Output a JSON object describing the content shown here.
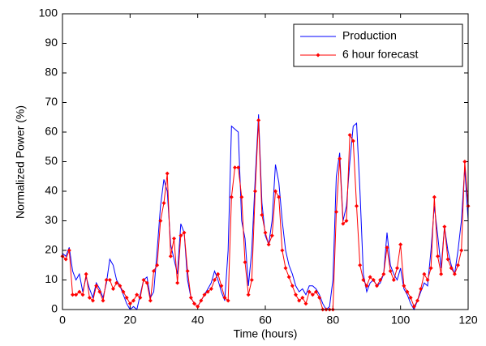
{
  "chart_data": {
    "type": "line",
    "x_label": "Time (hours)",
    "y_label": "Normalized Power (%)",
    "x": [
      0,
      1,
      2,
      3,
      4,
      5,
      6,
      7,
      8,
      9,
      10,
      11,
      12,
      13,
      14,
      15,
      16,
      17,
      18,
      19,
      20,
      21,
      22,
      23,
      24,
      25,
      26,
      27,
      28,
      29,
      30,
      31,
      32,
      33,
      34,
      35,
      36,
      37,
      38,
      39,
      40,
      41,
      42,
      43,
      44,
      45,
      46,
      47,
      48,
      49,
      50,
      51,
      52,
      53,
      54,
      55,
      56,
      57,
      58,
      59,
      60,
      61,
      62,
      63,
      64,
      65,
      66,
      67,
      68,
      69,
      70,
      71,
      72,
      73,
      74,
      75,
      76,
      77,
      78,
      79,
      80,
      81,
      82,
      83,
      84,
      85,
      86,
      87,
      88,
      89,
      90,
      91,
      92,
      93,
      94,
      95,
      96,
      97,
      98,
      99,
      100,
      101,
      102,
      103,
      104,
      105,
      106,
      107,
      108,
      109,
      110,
      111,
      112,
      113,
      114,
      115,
      116,
      117,
      118,
      119,
      120
    ],
    "series": [
      {
        "name": "Production",
        "color": "#0000ff",
        "marker": false,
        "values": [
          19,
          18,
          21,
          13,
          10,
          12,
          6,
          11,
          7,
          4,
          9,
          7,
          4,
          9,
          17,
          15,
          10,
          8,
          5,
          2,
          0,
          1,
          0,
          5,
          10,
          11,
          4,
          6,
          20,
          35,
          44,
          40,
          22,
          17,
          12,
          29,
          26,
          10,
          4,
          2,
          1,
          3,
          5,
          7,
          9,
          13,
          10,
          6,
          3,
          20,
          62,
          61,
          60,
          30,
          24,
          8,
          20,
          44,
          66,
          36,
          25,
          22,
          30,
          49,
          43,
          30,
          20,
          15,
          12,
          8,
          6,
          7,
          5,
          8,
          8,
          7,
          5,
          2,
          0,
          1,
          10,
          45,
          53,
          30,
          35,
          50,
          62,
          63,
          40,
          12,
          6,
          9,
          10,
          8,
          9,
          12,
          26,
          15,
          12,
          10,
          14,
          7,
          5,
          2,
          0,
          3,
          6,
          9,
          8,
          20,
          35,
          25,
          14,
          28,
          20,
          15,
          12,
          20,
          30,
          48,
          30
        ]
      },
      {
        "name": "6 hour forecast",
        "color": "#ff0000",
        "marker": true,
        "values": [
          18,
          17,
          20,
          5,
          5,
          6,
          5,
          12,
          4,
          3,
          8,
          6,
          3,
          10,
          10,
          7,
          9,
          8,
          6,
          4,
          2,
          3,
          5,
          4,
          10,
          9,
          3,
          13,
          15,
          30,
          36,
          46,
          18,
          24,
          9,
          25,
          26,
          13,
          4,
          2,
          1,
          3,
          5,
          6,
          7,
          10,
          12,
          8,
          4,
          3,
          38,
          48,
          48,
          38,
          16,
          5,
          10,
          40,
          64,
          32,
          26,
          22,
          25,
          40,
          38,
          20,
          14,
          11,
          8,
          5,
          3,
          4,
          2,
          6,
          5,
          6,
          4,
          0,
          0,
          0,
          0,
          33,
          51,
          29,
          30,
          59,
          57,
          35,
          15,
          10,
          8,
          11,
          10,
          8,
          10,
          12,
          21,
          13,
          10,
          14,
          22,
          8,
          6,
          4,
          1,
          3,
          7,
          12,
          10,
          14,
          38,
          18,
          12,
          28,
          17,
          14,
          12,
          15,
          20,
          50,
          35
        ]
      }
    ],
    "xlim": [
      0,
      120
    ],
    "xticks": [
      0,
      20,
      40,
      60,
      80,
      100,
      120
    ],
    "ylim": [
      0,
      100
    ],
    "yticks": [
      0,
      10,
      20,
      30,
      40,
      50,
      60,
      70,
      80,
      90,
      100
    ],
    "grid": false,
    "legend": "northeast"
  }
}
